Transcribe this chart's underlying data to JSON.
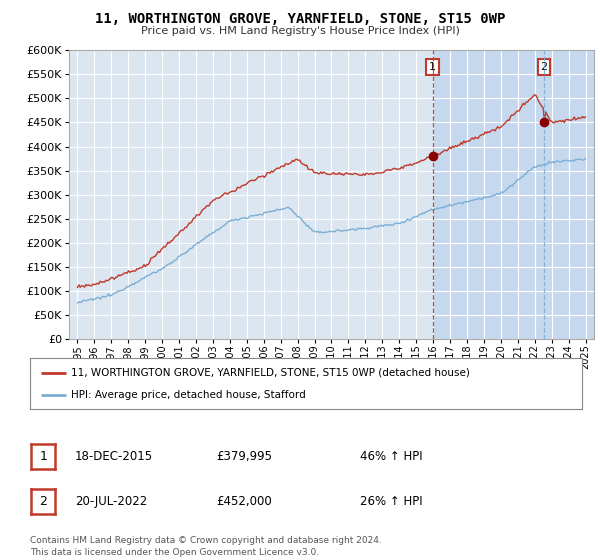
{
  "title": "11, WORTHINGTON GROVE, YARNFIELD, STONE, ST15 0WP",
  "subtitle": "Price paid vs. HM Land Registry's House Price Index (HPI)",
  "ylim": [
    0,
    600000
  ],
  "yticks": [
    0,
    50000,
    100000,
    150000,
    200000,
    250000,
    300000,
    350000,
    400000,
    450000,
    500000,
    550000,
    600000
  ],
  "legend_line1": "11, WORTHINGTON GROVE, YARNFIELD, STONE, ST15 0WP (detached house)",
  "legend_line2": "HPI: Average price, detached house, Stafford",
  "annotation1_date": "18-DEC-2015",
  "annotation1_price": "£379,995",
  "annotation1_hpi": "46% ↑ HPI",
  "annotation2_date": "20-JUL-2022",
  "annotation2_price": "£452,000",
  "annotation2_hpi": "26% ↑ HPI",
  "footer": "Contains HM Land Registry data © Crown copyright and database right 2024.\nThis data is licensed under the Open Government Licence v3.0.",
  "line_color_red": "#c0392b",
  "line_color_blue": "#7bafd4",
  "plot_bg_color": "#dce6f1",
  "shade_bg_color": "#c5d8ee",
  "vline_color": "#c0392b",
  "vline2_color": "#7bafd4",
  "marker1_x": 2015.97,
  "marker1_y": 379995,
  "marker2_x": 2022.55,
  "marker2_y": 452000,
  "xlim_start": 1994.5,
  "xlim_end": 2025.5
}
